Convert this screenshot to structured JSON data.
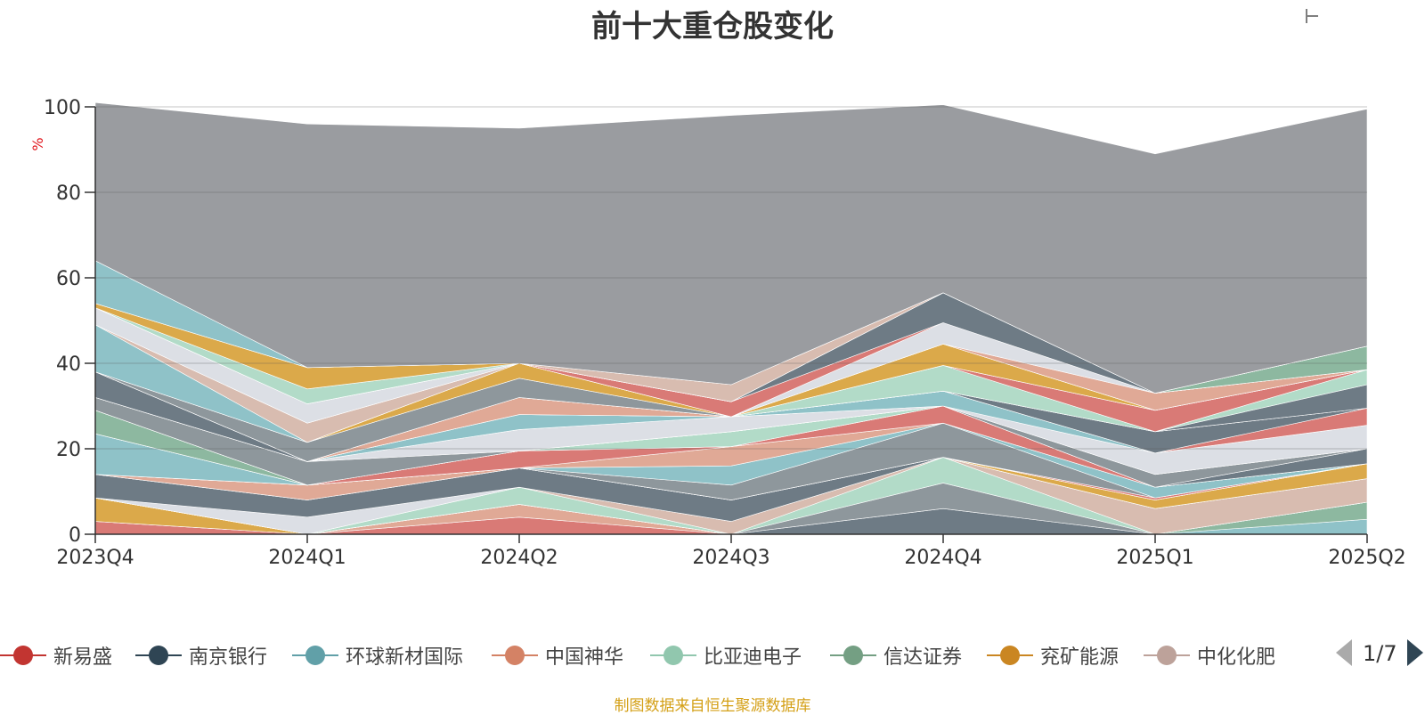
{
  "chart_data": {
    "type": "area",
    "stacked": true,
    "title": "前十大重仓股变化",
    "ylabel": "%",
    "ylim": [
      0,
      100
    ],
    "yticks": [
      0,
      20,
      40,
      60,
      80,
      100
    ],
    "categories": [
      "2023Q4",
      "2024Q1",
      "2024Q2",
      "2024Q3",
      "2024Q4",
      "2025Q1",
      "2025Q2"
    ],
    "grid": true,
    "series": [
      {
        "color": "#d97a76",
        "values": [
          3.0,
          0.0,
          4.0,
          0.0,
          0.0,
          0.0,
          0.0
        ]
      },
      {
        "color": "#e0a996",
        "values": [
          0.0,
          0.0,
          3.0,
          0.0,
          0.0,
          0.0,
          0.0
        ]
      },
      {
        "color": "#dba94a",
        "values": [
          5.5,
          0.0,
          0.0,
          0.0,
          0.0,
          0.0,
          0.0
        ]
      },
      {
        "color": "#8fc2c8",
        "values": [
          0.0,
          0.0,
          0.0,
          0.0,
          0.0,
          0.0,
          3.5
        ]
      },
      {
        "color": "#8db8a0",
        "values": [
          0.0,
          0.0,
          0.0,
          0.0,
          0.0,
          0.0,
          4.0
        ]
      },
      {
        "color": "#6e7b85",
        "values": [
          0.0,
          0.0,
          0.0,
          0.0,
          6.0,
          0.0,
          0.0
        ]
      },
      {
        "color": "#8e979c",
        "values": [
          0.0,
          0.0,
          0.0,
          0.0,
          6.0,
          0.0,
          0.0
        ]
      },
      {
        "color": "#b2dbc8",
        "values": [
          0.0,
          0.0,
          4.0,
          0.0,
          6.0,
          0.0,
          0.0
        ]
      },
      {
        "color": "#d8bcb0",
        "values": [
          0.0,
          0.0,
          0.0,
          3.0,
          0.0,
          6.0,
          5.5
        ]
      },
      {
        "color": "#dcdfe5",
        "values": [
          0.0,
          4.0,
          0.0,
          0.0,
          0.0,
          0.0,
          0.0
        ]
      },
      {
        "color": "#6e7b85",
        "values": [
          5.5,
          4.0,
          4.5,
          5.0,
          0.0,
          0.0,
          0.0
        ]
      },
      {
        "color": "#dba94a",
        "values": [
          0.0,
          0.0,
          0.0,
          0.0,
          0.0,
          2.0,
          3.5
        ]
      },
      {
        "color": "#e0a996",
        "values": [
          0.0,
          3.5,
          0.0,
          0.0,
          0.0,
          0.0,
          0.0
        ]
      },
      {
        "color": "#d97a76",
        "values": [
          0.0,
          0.0,
          0.0,
          0.0,
          0.0,
          0.5,
          0.0
        ]
      },
      {
        "color": "#8e979c",
        "values": [
          0.0,
          0.0,
          0.0,
          3.5,
          8.0,
          0.0,
          0.0
        ]
      },
      {
        "color": "#8fc2c8",
        "values": [
          9.5,
          0.0,
          0.0,
          4.5,
          0.0,
          2.5,
          0.0
        ]
      },
      {
        "color": "#e0a996",
        "values": [
          0.0,
          0.0,
          0.0,
          4.5,
          0.0,
          0.0,
          0.0
        ]
      },
      {
        "color": "#d97a76",
        "values": [
          0.0,
          0.0,
          4.0,
          0.0,
          4.0,
          0.0,
          0.0
        ]
      },
      {
        "color": "#8db8a0",
        "values": [
          5.5,
          0.0,
          0.0,
          0.0,
          0.0,
          0.0,
          0.0
        ]
      },
      {
        "color": "#b2dbc8",
        "values": [
          0.0,
          0.0,
          0.0,
          3.5,
          0.0,
          0.0,
          0.0
        ]
      },
      {
        "color": "#6e7b85",
        "values": [
          0.0,
          0.0,
          0.0,
          0.0,
          0.0,
          0.0,
          3.5
        ]
      },
      {
        "color": "#8e979c",
        "values": [
          3.0,
          5.5,
          0.0,
          0.0,
          0.0,
          3.0,
          0.0
        ]
      },
      {
        "color": "#dcdfe5",
        "values": [
          0.0,
          0.0,
          5.0,
          3.5,
          0.0,
          0.0,
          0.0
        ]
      },
      {
        "color": "#dcdfe5",
        "values": [
          0.0,
          0.0,
          0.0,
          0.0,
          0.0,
          5.0,
          5.5
        ]
      },
      {
        "color": "#8fc2c8",
        "values": [
          0.0,
          0.0,
          3.5,
          0.0,
          3.5,
          0.0,
          0.0
        ]
      },
      {
        "color": "#d97a76",
        "values": [
          0.0,
          0.0,
          0.0,
          0.0,
          0.0,
          0.0,
          4.0
        ]
      },
      {
        "color": "#6e7b85",
        "values": [
          6.0,
          0.0,
          0.0,
          0.0,
          0.0,
          5.0,
          0.0
        ]
      },
      {
        "color": "#e0a996",
        "values": [
          0.0,
          0.0,
          4.0,
          0.0,
          0.0,
          0.0,
          0.0
        ]
      },
      {
        "color": "#6e7b85",
        "values": [
          0.0,
          0.0,
          0.0,
          0.0,
          0.0,
          0.0,
          5.5
        ]
      },
      {
        "color": "#b2dbc8",
        "values": [
          0.0,
          0.0,
          0.0,
          0.0,
          6.0,
          0.0,
          3.5
        ]
      },
      {
        "color": "#d97a76",
        "values": [
          0.0,
          0.0,
          0.0,
          0.0,
          0.0,
          5.0,
          0.0
        ]
      },
      {
        "color": "#8e979c",
        "values": [
          0.0,
          4.5,
          4.5,
          0.0,
          0.0,
          0.0,
          0.0
        ]
      },
      {
        "color": "#dba94a",
        "values": [
          0.0,
          0.0,
          3.5,
          0.0,
          5.0,
          0.0,
          0.0
        ]
      },
      {
        "color": "#8fc2c8",
        "values": [
          11.0,
          0.0,
          0.0,
          0.0,
          0.0,
          0.0,
          0.0
        ]
      },
      {
        "color": "#d8bcb0",
        "values": [
          0.0,
          4.5,
          0.0,
          0.0,
          0.0,
          0.0,
          0.0
        ]
      },
      {
        "color": "#e0a996",
        "values": [
          0.0,
          0.0,
          0.0,
          0.0,
          0.0,
          4.0,
          0.0
        ]
      },
      {
        "color": "#dcdfe5",
        "values": [
          4.0,
          4.5,
          0.0,
          0.0,
          5.0,
          0.0,
          0.0
        ]
      },
      {
        "color": "#d97a76",
        "values": [
          0.0,
          0.0,
          0.0,
          3.5,
          0.0,
          0.0,
          0.0
        ]
      },
      {
        "color": "#6e7b85",
        "values": [
          0.0,
          0.0,
          0.0,
          0.0,
          7.0,
          0.0,
          0.0
        ]
      },
      {
        "color": "#8db8a0",
        "values": [
          0.0,
          0.0,
          0.0,
          0.0,
          0.0,
          0.0,
          5.5
        ]
      },
      {
        "color": "#b2dbc8",
        "values": [
          0.0,
          3.5,
          0.0,
          0.0,
          0.0,
          0.0,
          0.0
        ]
      },
      {
        "color": "#dba94a",
        "values": [
          1.0,
          5.0,
          0.0,
          0.0,
          0.0,
          0.0,
          0.0
        ]
      },
      {
        "color": "#d8bcb0",
        "values": [
          0.0,
          0.0,
          0.0,
          4.0,
          0.0,
          0.0,
          0.0
        ]
      },
      {
        "color": "#8fc2c8",
        "values": [
          10.0,
          0.0,
          0.0,
          0.0,
          0.0,
          0.0,
          0.0
        ]
      },
      {
        "color": "#9a9ca0",
        "values": [
          37.0,
          57.0,
          55.0,
          63.0,
          44.0,
          56.0,
          55.5
        ]
      }
    ]
  },
  "legend": {
    "items": [
      {
        "label": "新易盛",
        "color": "#c23531"
      },
      {
        "label": "南京银行",
        "color": "#2f4554"
      },
      {
        "label": "环球新材国际",
        "color": "#61a0a8"
      },
      {
        "label": "中国神华",
        "color": "#d48265"
      },
      {
        "label": "比亚迪电子",
        "color": "#91c7ae"
      },
      {
        "label": "信达证券",
        "color": "#749f83"
      },
      {
        "label": "兖矿能源",
        "color": "#ca8622"
      },
      {
        "label": "中化化肥",
        "color": "#bda29a"
      }
    ],
    "page": "1/7"
  },
  "source_note": "制图数据来自恒生聚源数据库"
}
